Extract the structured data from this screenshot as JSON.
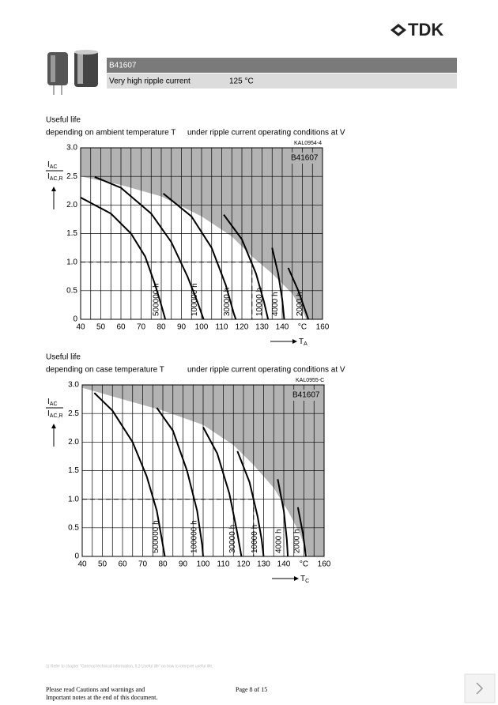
{
  "header": {
    "logo": "TDK",
    "part": "B41607",
    "description": "Very high ripple current",
    "temperature": "125 °C"
  },
  "sections": [
    {
      "heading": "Useful life",
      "caption_left": "depending on ambient temperature T",
      "caption_right": "under ripple current operating conditions at V",
      "chart": {
        "code": "KAL0954-4",
        "label": "B41607",
        "ylabel": {
          "numerator": "I",
          "numerator_sub": "AC",
          "denominator": "I",
          "denominator_sub": "AC,R"
        },
        "xlabel": {
          "main": "T",
          "sub": "A"
        },
        "xlim": [
          40,
          160
        ],
        "ylim": [
          0,
          3
        ],
        "xticks": [
          40,
          50,
          60,
          70,
          80,
          90,
          100,
          110,
          120,
          130,
          140,
          {
            "value": 150,
            "label": "°C"
          },
          160
        ],
        "yticks": [
          0,
          0.5,
          {
            "value": 1,
            "label": "1.0"
          },
          1.5,
          {
            "value": 2,
            "label": "2.0"
          },
          2.5,
          {
            "value": 3,
            "label": "3.0"
          }
        ],
        "grid_x_step": 5,
        "reference": {
          "x": 125,
          "y": 1
        },
        "limit": {
          "x": [
            40,
            60,
            80,
            100,
            115,
            125,
            135,
            145,
            150,
            152
          ],
          "values": [
            2.5,
            2.35,
            2.15,
            1.8,
            1.45,
            1.1,
            0.8,
            0.45,
            0.15,
            0
          ]
        },
        "series": [
          {
            "name": "500000 h",
            "x": [
              40,
              55,
              65,
              72,
              77,
              80,
              82
            ],
            "values": [
              2.13,
              1.85,
              1.5,
              1.1,
              0.6,
              0.25,
              0
            ]
          },
          {
            "name": "100000 h",
            "x": [
              47,
              60,
              75,
              85,
              93,
              98,
              101
            ],
            "values": [
              2.49,
              2.3,
              1.85,
              1.35,
              0.75,
              0.3,
              0
            ]
          },
          {
            "name": "30000 h",
            "x": [
              81,
              95,
              105,
              112,
              116,
              117
            ],
            "values": [
              2.2,
              1.8,
              1.25,
              0.6,
              0.1,
              0
            ]
          },
          {
            "name": "10000 h",
            "x": [
              111,
              120,
              127,
              131,
              133
            ],
            "values": [
              1.83,
              1.4,
              0.8,
              0.3,
              0
            ]
          },
          {
            "name": "4000 h",
            "x": [
              135,
              138,
              140,
              141
            ],
            "values": [
              1.25,
              0.8,
              0.35,
              0
            ]
          },
          {
            "name": "2000 h",
            "x": [
              143,
              148,
              151,
              153
            ],
            "values": [
              0.9,
              0.5,
              0.2,
              0
            ]
          }
        ]
      }
    },
    {
      "heading": "Useful life",
      "caption_left": "depending on case temperature T",
      "caption_right": "under ripple current operating conditions at V",
      "chart": {
        "code": "KAL0955-C",
        "label": "B41607",
        "ylabel": {
          "numerator": "I",
          "numerator_sub": "AC",
          "denominator": "I",
          "denominator_sub": "AC,R"
        },
        "xlabel": {
          "main": "T",
          "sub": "C"
        },
        "xlim": [
          40,
          160
        ],
        "ylim": [
          0,
          3
        ],
        "xticks": [
          40,
          50,
          60,
          70,
          80,
          90,
          100,
          110,
          120,
          130,
          140,
          {
            "value": 150,
            "label": "°C"
          },
          160
        ],
        "yticks": [
          0,
          0.5,
          {
            "value": 1,
            "label": "1.0"
          },
          1.5,
          {
            "value": 2,
            "label": "2.0"
          },
          2.5,
          {
            "value": 3,
            "label": "3.0"
          }
        ],
        "grid_x_step": 5,
        "reference": {
          "x": 125,
          "y": 1
        },
        "limit": {
          "x": [
            40,
            60,
            80,
            100,
            115,
            125,
            135,
            142,
            148,
            152
          ],
          "values": [
            2.95,
            2.75,
            2.55,
            2.3,
            1.95,
            1.6,
            1.2,
            0.8,
            0.4,
            0
          ]
        },
        "series": [
          {
            "name": "500000 h",
            "x": [
              46,
              55,
              65,
              72,
              77,
              80,
              81
            ],
            "values": [
              2.86,
              2.55,
              2,
              1.4,
              0.8,
              0.2,
              0
            ]
          },
          {
            "name": "100000 h",
            "x": [
              77,
              85,
              92,
              97,
              99.5,
              100
            ],
            "values": [
              2.6,
              2.2,
              1.5,
              0.8,
              0.2,
              0
            ]
          },
          {
            "name": "30000 h",
            "x": [
              100,
              107,
              113,
              117,
              119
            ],
            "values": [
              2.26,
              1.8,
              1.1,
              0.4,
              0
            ]
          },
          {
            "name": "10000 h",
            "x": [
              117,
              123,
              127,
              129,
              130
            ],
            "values": [
              1.84,
              1.3,
              0.7,
              0.3,
              0
            ]
          },
          {
            "name": "4000 h",
            "x": [
              137,
              140,
              141.5,
              142
            ],
            "values": [
              1.35,
              0.8,
              0.3,
              0
            ]
          },
          {
            "name": "2000 h",
            "x": [
              147,
              149.5,
              151
            ],
            "values": [
              0.86,
              0.4,
              0
            ]
          }
        ]
      }
    }
  ],
  "footer": {
    "footnote": "1) Refer to chapter \"General technical information, 5.3 Useful life\" on how to interpret useful life.",
    "notice_line1": "Please read Cautions and warnings and",
    "notice_line2": "Important notes at the end of this document.",
    "page": "Page 8 of 15"
  }
}
